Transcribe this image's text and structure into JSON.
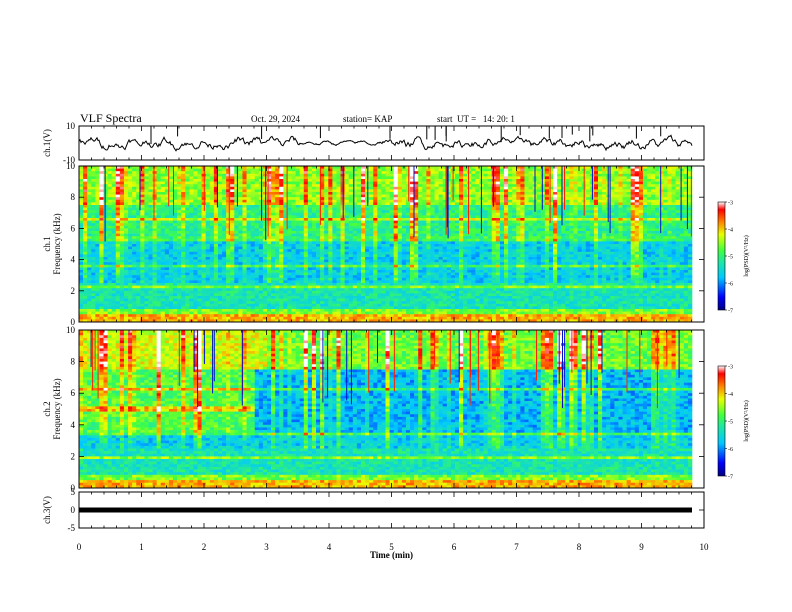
{
  "header": {
    "title": "VLF Spectra",
    "date": "Oct. 29, 2024",
    "station": "station= KAP",
    "start_time": "start  UT =   14: 20: 1"
  },
  "chart_data": {
    "type": "heatmap",
    "title": "VLF Spectra",
    "xlabel": "Time  (min)",
    "xlim": [
      0,
      10
    ],
    "x_ticks": [
      "0",
      "1",
      "2",
      "3",
      "4",
      "5",
      "6",
      "7",
      "8",
      "9",
      "10"
    ],
    "panels": [
      {
        "id": "ch1-waveform",
        "type": "line",
        "ylabel": "ch.1(V)",
        "ylim": [
          -10,
          10
        ],
        "y_ticks": [
          "10",
          "-10"
        ]
      },
      {
        "id": "ch1-spectrogram",
        "type": "heatmap",
        "ylabel_line1": "ch.1",
        "ylabel_line2": "Frequency  (kHz)",
        "ylim": [
          0,
          10
        ],
        "y_ticks": [
          "0",
          "2",
          "4",
          "6",
          "8",
          "10"
        ],
        "colorbar": {
          "label": "log(PSD)(V²/Hz)",
          "range": [
            -7,
            -3
          ],
          "ticks": [
            "-3",
            "-4",
            "-5",
            "-6",
            "-7"
          ]
        }
      },
      {
        "id": "ch2-spectrogram",
        "type": "heatmap",
        "ylabel_line1": "ch.2",
        "ylabel_line2": "Frequency  (kHz)",
        "ylim": [
          0,
          10
        ],
        "y_ticks": [
          "0",
          "2",
          "4",
          "6",
          "8",
          "10"
        ],
        "colorbar": {
          "label": "log(PSD)(V²/Hz)",
          "range": [
            -7,
            -3
          ],
          "ticks": [
            "-3",
            "-4",
            "-5",
            "-6",
            "-7"
          ]
        }
      },
      {
        "id": "ch3-waveform",
        "type": "line",
        "ylabel": "ch.3(V)",
        "ylim": [
          -5,
          5
        ],
        "y_ticks": [
          "5",
          "0",
          "-5"
        ]
      }
    ]
  }
}
